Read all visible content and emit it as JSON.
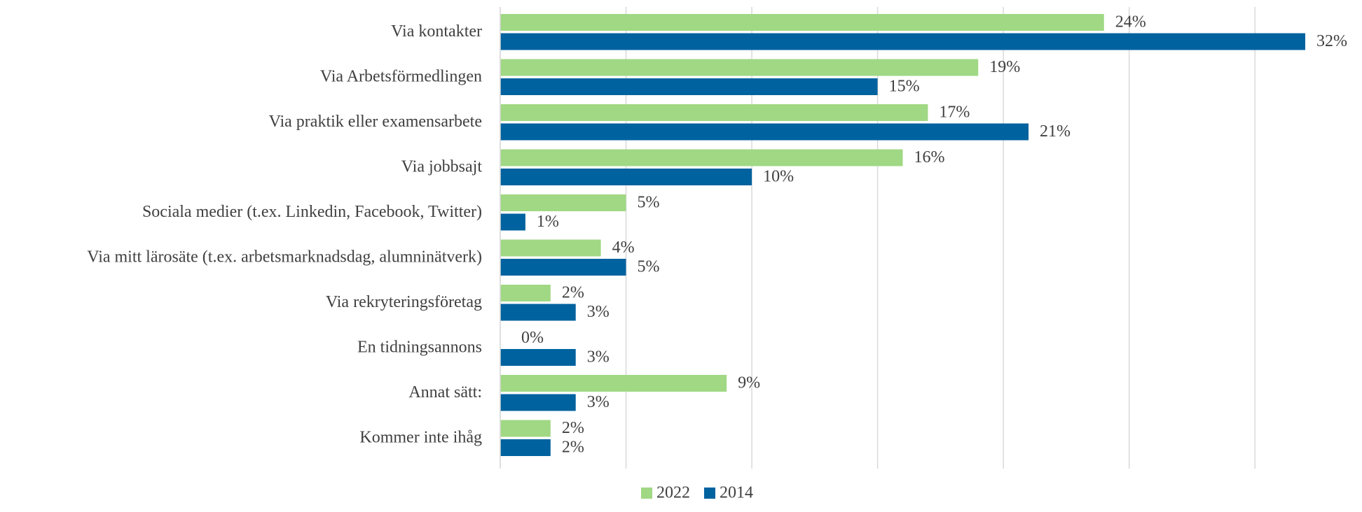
{
  "chart_data": {
    "type": "barh",
    "categories": [
      "Via kontakter",
      "Via Arbetsförmedlingen",
      "Via praktik eller examensarbete",
      "Via jobbsajt",
      "Sociala medier (t.ex. Linkedin, Facebook, Twitter)",
      "Via mitt lärosäte (t.ex. arbetsmarknadsdag, alumninätverk)",
      "Via rekryteringsföretag",
      "En tidningsannons",
      "Annat sätt:",
      "Kommer inte ihåg"
    ],
    "series": [
      {
        "name": "2022",
        "color": "#a0d884",
        "values": [
          24,
          19,
          17,
          16,
          5,
          4,
          2,
          0,
          9,
          2
        ],
        "value_labels": [
          "24%",
          "19%",
          "17%",
          "16%",
          "5%",
          "4%",
          "2%",
          "0%",
          "9%",
          "2%"
        ]
      },
      {
        "name": "2014",
        "color": "#00629e",
        "values": [
          32,
          15,
          21,
          10,
          1,
          5,
          3,
          3,
          3,
          2
        ],
        "value_labels": [
          "32%",
          "15%",
          "21%",
          "10%",
          "1%",
          "5%",
          "3%",
          "3%",
          "3%",
          "2%"
        ]
      }
    ],
    "xlim": [
      0,
      32
    ],
    "xticks": [
      0,
      5,
      10,
      15,
      20,
      25,
      30
    ],
    "grid": true,
    "legend": "bottom"
  }
}
